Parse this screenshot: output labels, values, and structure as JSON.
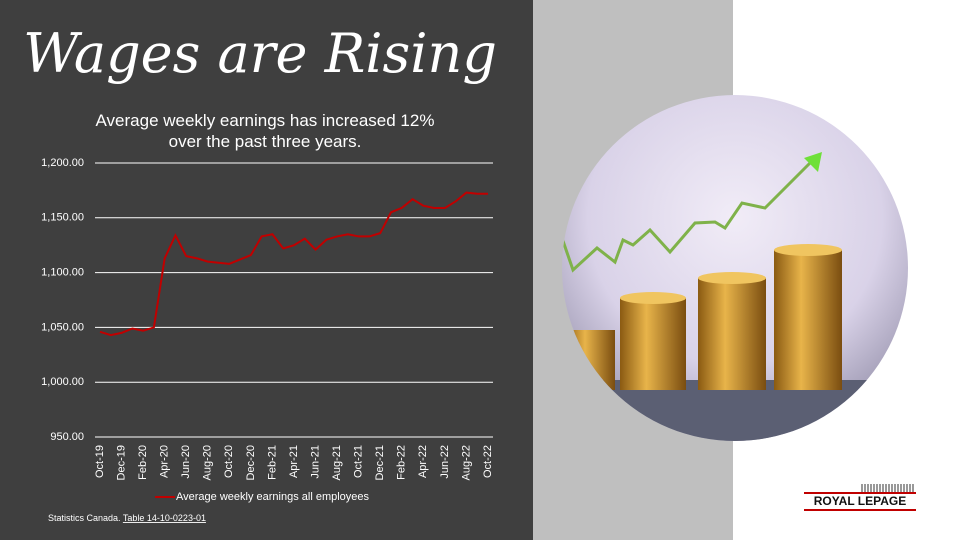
{
  "chart_data": {
    "type": "line",
    "title": "Wages are Rising",
    "subtitle": "Average weekly earnings has increased 12% over the past three years.",
    "categories": [
      "Oct-19",
      null,
      "Dec-19",
      null,
      "Feb-20",
      null,
      "Apr-20",
      null,
      "Jun-20",
      null,
      "Aug-20",
      null,
      "Oct-20",
      null,
      "Dec-20",
      null,
      "Feb-21",
      null,
      "Apr-21",
      null,
      "Jun-21",
      null,
      "Aug-21",
      null,
      "Oct-21",
      null,
      "Dec-21",
      null,
      "Feb-22",
      null,
      "Apr-22",
      null,
      "Jun-22",
      null,
      "Aug-22",
      null,
      "Oct-22"
    ],
    "series": [
      {
        "name": "Average weekly earnings all employees",
        "color": "#c00000",
        "values": [
          1046,
          1043,
          1045,
          1049,
          1047,
          1050,
          1113,
          1134,
          1115,
          1113,
          1110,
          1109,
          1108,
          1112,
          1116,
          1133,
          1135,
          1122,
          1125,
          1131,
          1121,
          1130,
          1133,
          1135,
          1133,
          1133,
          1136,
          1155,
          1159,
          1167,
          1161,
          1159,
          1159,
          1165,
          1173,
          1172,
          1172
        ]
      }
    ],
    "ylim": [
      950,
      1200
    ],
    "yticks": [
      {
        "value": 950,
        "label": "950.00"
      },
      {
        "value": 1000,
        "label": "1,000.00"
      },
      {
        "value": 1050,
        "label": "1,050.00"
      },
      {
        "value": 1100,
        "label": "1,100.00"
      },
      {
        "value": 1150,
        "label": "1,150.00"
      },
      {
        "value": 1200,
        "label": "1,200.00"
      }
    ],
    "grid": true,
    "legend": "bottom"
  },
  "source": {
    "text": "Statistics Canada.",
    "link": "Table 14-10-0223-01"
  },
  "logo": "ROYAL LEPAGE"
}
